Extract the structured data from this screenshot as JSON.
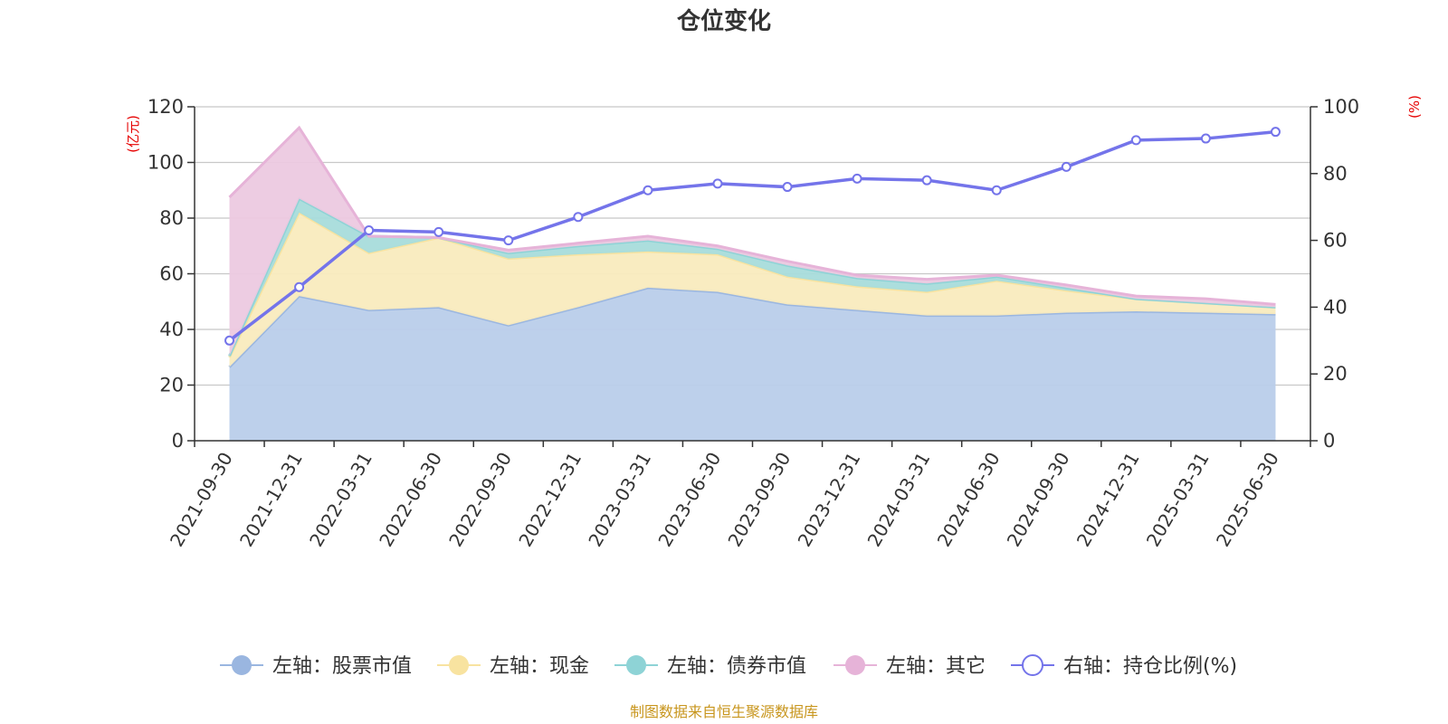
{
  "chart_data": {
    "type": "area",
    "title": "仓位变化",
    "left_axis_unit": "(亿元)",
    "right_axis_unit": "(%)",
    "categories": [
      "2021-09-30",
      "2021-12-31",
      "2022-03-31",
      "2022-06-30",
      "2022-09-30",
      "2022-12-31",
      "2023-03-31",
      "2023-06-30",
      "2023-09-30",
      "2023-12-31",
      "2024-03-31",
      "2024-06-30",
      "2024-09-30",
      "2024-12-31",
      "2025-03-31",
      "2025-06-30"
    ],
    "left_ylim": [
      0,
      120
    ],
    "left_yticks": [
      0,
      20,
      40,
      60,
      80,
      100,
      120
    ],
    "right_ylim": [
      0,
      100
    ],
    "right_yticks": [
      0,
      20,
      40,
      60,
      80,
      100
    ],
    "grid": true,
    "legend_position": "bottom",
    "series": [
      {
        "name": "左轴：股票市值",
        "axis": "left",
        "kind": "stacked-area",
        "color": "#9ab6e0",
        "fill": "#b9cdea",
        "values": [
          26.5,
          52,
          47,
          48,
          41.5,
          48,
          55,
          53.5,
          49,
          47,
          45,
          45,
          46,
          46.5,
          46,
          45.5
        ]
      },
      {
        "name": "左轴：现金",
        "axis": "left",
        "kind": "stacked-area",
        "color": "#f8e3a0",
        "fill": "#f9ebbe",
        "values": [
          3.5,
          30,
          20.5,
          25,
          24,
          19,
          13,
          13.5,
          10,
          8.5,
          8.5,
          12.5,
          8,
          4.5,
          3.5,
          2.5
        ]
      },
      {
        "name": "左轴：债券市值",
        "axis": "left",
        "kind": "stacked-area",
        "color": "#8ed3d6",
        "fill": "#a8dcdb",
        "values": [
          0.5,
          5,
          6,
          0,
          2,
          3,
          4,
          2,
          4,
          3,
          3,
          1.5,
          1,
          0,
          0,
          0
        ]
      },
      {
        "name": "左轴：其它",
        "axis": "left",
        "kind": "stacked-area",
        "color": "#e6b3d8",
        "fill": "#ecc9e0",
        "values": [
          57,
          25.5,
          0,
          0,
          1,
          1,
          1.5,
          1,
          1.5,
          1,
          1.5,
          0.5,
          1,
          1,
          1.5,
          1
        ]
      },
      {
        "name": "右轴：持仓比例(%)",
        "axis": "right",
        "kind": "line",
        "color": "#7474ea",
        "values": [
          30,
          46,
          63,
          62.5,
          60,
          67,
          75,
          77,
          76,
          78.5,
          78,
          75,
          82,
          90,
          90.5,
          92.5
        ]
      }
    ]
  },
  "source_note": "制图数据来自恒生聚源数据库"
}
